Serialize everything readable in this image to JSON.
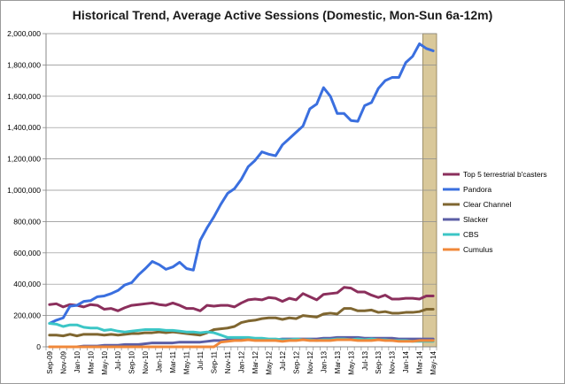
{
  "chart_data": {
    "type": "line",
    "title": "Historical Trend, Average Active Sessions (Domestic, Mon-Sun 6a-12m)",
    "xlabel": "",
    "ylabel": "",
    "ylim": [
      0,
      2000000
    ],
    "yticks": [
      "0",
      "200,000",
      "400,000",
      "600,000",
      "800,000",
      "1,000,000",
      "1,200,000",
      "1,400,000",
      "1,600,000",
      "1,800,000",
      "2,000,000"
    ],
    "ytick_values": [
      0,
      200000,
      400000,
      600000,
      800000,
      1000000,
      1200000,
      1400000,
      1600000,
      1800000,
      2000000
    ],
    "grid": "horizontal",
    "legend_position": "right",
    "highlight_range": [
      "Apr-14",
      "May-14"
    ],
    "highlight_color": "#d9c89a",
    "categories": [
      "Sep-09",
      "Oct-09",
      "Nov-09",
      "Dec-09",
      "Jan-10",
      "Feb-10",
      "Mar-10",
      "Apr-10",
      "May-10",
      "Jun-10",
      "Jul-10",
      "Aug-10",
      "Sep-10",
      "Oct-10",
      "Nov-10",
      "Dec-10",
      "Jan-11",
      "Feb-11",
      "Mar-11",
      "Apr-11",
      "May-11",
      "Jun-11",
      "Jul-11",
      "Aug-11",
      "Sep-11",
      "Oct-11",
      "Nov-11",
      "Dec-11",
      "Jan-12",
      "Feb-12",
      "Mar-12",
      "Apr-12",
      "May-12",
      "Jun-12",
      "Jul-12",
      "Aug-12",
      "Sep-12",
      "Oct-12",
      "Nov-12",
      "Dec-12",
      "Jan-13",
      "Feb-13",
      "Mar-13",
      "Apr-13",
      "May-13",
      "Jun-13",
      "Jul-13",
      "Aug-13",
      "Sep-13",
      "Oct-13",
      "Nov-13",
      "Dec-13",
      "Jan-14",
      "Feb-14",
      "Mar-14",
      "Apr-14",
      "May-14"
    ],
    "x_tick_labels": [
      "Sep-09",
      "Nov-09",
      "Jan-10",
      "Mar-10",
      "May-10",
      "Jul-10",
      "Sep-10",
      "Nov-10",
      "Jan-11",
      "Mar-11",
      "May-11",
      "Jul-11",
      "Sep-11",
      "Nov-11",
      "Jan-12",
      "Mar-12",
      "May-12",
      "Jul-12",
      "Sep-12",
      "Nov-12",
      "Jan-13",
      "Mar-13",
      "May-13",
      "Jul-13",
      "Sep-13",
      "Nov-13",
      "Jan-14",
      "Mar-14",
      "May-14"
    ],
    "series": [
      {
        "name": "Top 5 terrestrial b'casters",
        "color": "#8b2f5c",
        "values": [
          270000,
          275000,
          255000,
          270000,
          265000,
          255000,
          270000,
          265000,
          240000,
          245000,
          230000,
          250000,
          265000,
          270000,
          275000,
          280000,
          270000,
          265000,
          280000,
          265000,
          245000,
          245000,
          230000,
          265000,
          260000,
          265000,
          265000,
          255000,
          280000,
          300000,
          305000,
          300000,
          315000,
          310000,
          290000,
          310000,
          300000,
          340000,
          320000,
          300000,
          335000,
          340000,
          345000,
          380000,
          375000,
          350000,
          350000,
          330000,
          315000,
          330000,
          305000,
          305000,
          310000,
          310000,
          305000,
          325000,
          325000
        ]
      },
      {
        "name": "Pandora",
        "color": "#3a6fdf",
        "values": [
          150000,
          170000,
          185000,
          260000,
          265000,
          290000,
          295000,
          320000,
          325000,
          340000,
          360000,
          395000,
          410000,
          460000,
          500000,
          545000,
          525000,
          495000,
          510000,
          540000,
          500000,
          490000,
          680000,
          760000,
          830000,
          910000,
          980000,
          1010000,
          1070000,
          1150000,
          1190000,
          1245000,
          1230000,
          1220000,
          1290000,
          1330000,
          1370000,
          1410000,
          1520000,
          1550000,
          1655000,
          1600000,
          1490000,
          1490000,
          1445000,
          1440000,
          1540000,
          1560000,
          1650000,
          1700000,
          1720000,
          1720000,
          1815000,
          1855000,
          1935000,
          1905000,
          1890000
        ]
      },
      {
        "name": "Clear Channel",
        "color": "#7f6630",
        "values": [
          75000,
          75000,
          70000,
          80000,
          70000,
          80000,
          80000,
          80000,
          75000,
          80000,
          75000,
          80000,
          85000,
          85000,
          90000,
          90000,
          95000,
          90000,
          95000,
          90000,
          85000,
          80000,
          75000,
          90000,
          110000,
          115000,
          120000,
          130000,
          155000,
          165000,
          170000,
          180000,
          185000,
          185000,
          175000,
          185000,
          180000,
          200000,
          195000,
          190000,
          210000,
          215000,
          210000,
          245000,
          245000,
          230000,
          230000,
          235000,
          220000,
          225000,
          215000,
          215000,
          220000,
          220000,
          225000,
          240000,
          240000
        ]
      },
      {
        "name": "Slacker",
        "color": "#5b5ea6",
        "values": [
          0,
          0,
          0,
          0,
          0,
          5000,
          5000,
          5000,
          10000,
          10000,
          10000,
          15000,
          15000,
          15000,
          20000,
          25000,
          25000,
          25000,
          25000,
          30000,
          30000,
          30000,
          30000,
          35000,
          40000,
          40000,
          45000,
          45000,
          45000,
          45000,
          45000,
          45000,
          45000,
          45000,
          50000,
          50000,
          50000,
          50000,
          50000,
          50000,
          55000,
          55000,
          60000,
          60000,
          60000,
          60000,
          55000,
          55000,
          55000,
          55000,
          55000,
          50000,
          50000,
          50000,
          50000,
          50000,
          50000
        ]
      },
      {
        "name": "CBS",
        "color": "#3cc6c6",
        "values": [
          150000,
          145000,
          130000,
          140000,
          140000,
          125000,
          120000,
          120000,
          105000,
          110000,
          100000,
          95000,
          100000,
          105000,
          110000,
          110000,
          110000,
          105000,
          105000,
          100000,
          95000,
          95000,
          90000,
          95000,
          90000,
          75000,
          60000,
          60000,
          60000,
          60000,
          55000,
          55000,
          50000,
          50000,
          45000,
          45000,
          50000,
          45000,
          45000,
          40000,
          45000,
          45000,
          50000,
          50000,
          45000,
          50000,
          45000,
          50000,
          45000,
          45000,
          40000,
          40000,
          40000,
          35000,
          35000,
          35000,
          35000
        ]
      },
      {
        "name": "Cumulus",
        "color": "#f0883a",
        "values": [
          0,
          0,
          0,
          0,
          0,
          0,
          0,
          0,
          0,
          0,
          0,
          0,
          0,
          0,
          0,
          0,
          0,
          0,
          0,
          0,
          0,
          0,
          0,
          0,
          0,
          30000,
          35000,
          40000,
          40000,
          45000,
          40000,
          40000,
          40000,
          40000,
          35000,
          40000,
          40000,
          45000,
          40000,
          40000,
          40000,
          40000,
          45000,
          45000,
          45000,
          40000,
          40000,
          40000,
          45000,
          40000,
          40000,
          35000,
          35000,
          35000,
          40000,
          40000,
          40000
        ]
      }
    ]
  }
}
